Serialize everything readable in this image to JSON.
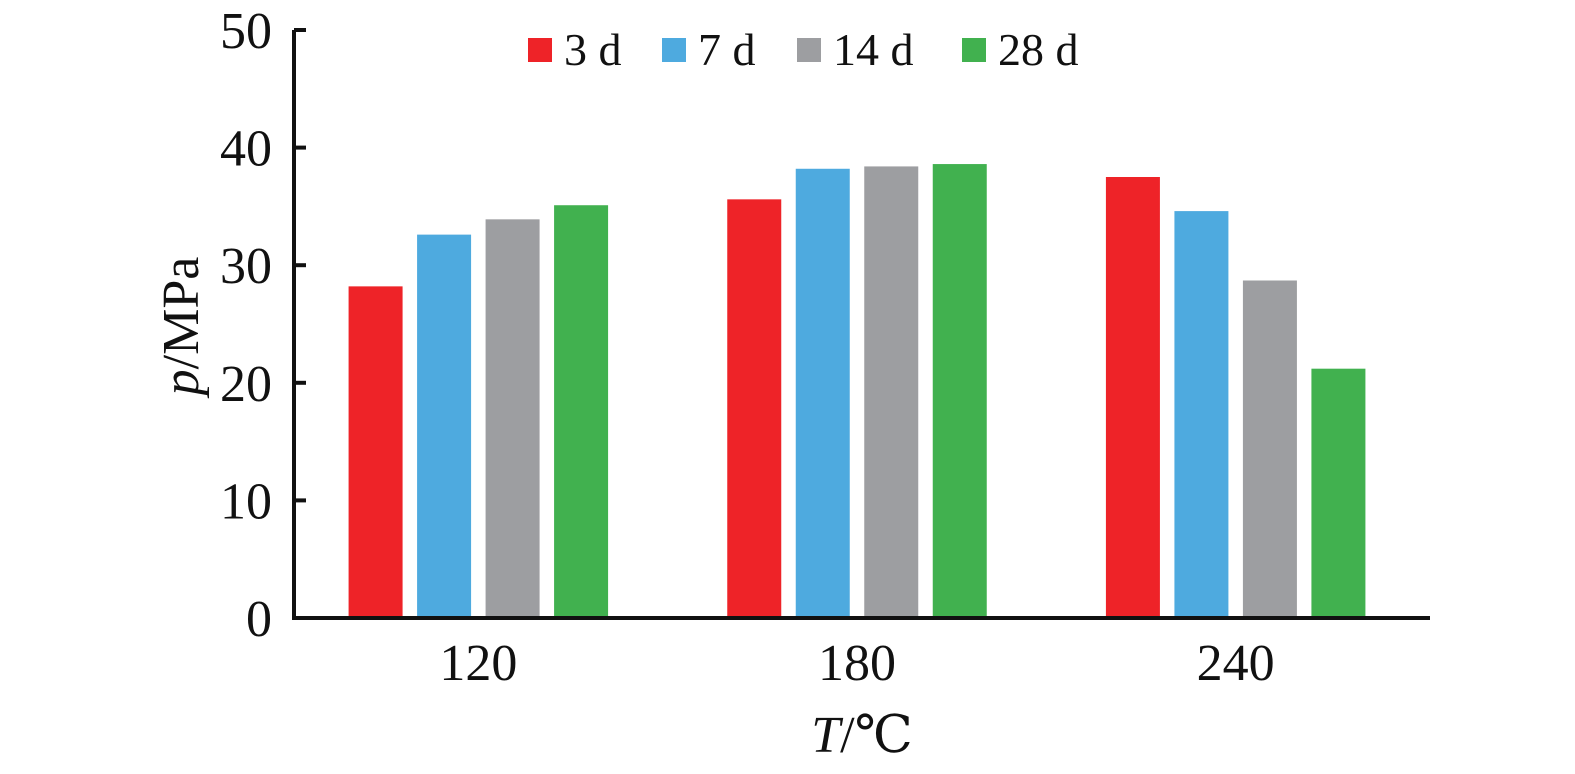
{
  "chart_data": {
    "type": "bar",
    "categories": [
      "120",
      "180",
      "240"
    ],
    "series": [
      {
        "name": "3 d",
        "values": [
          28.2,
          35.6,
          37.5
        ]
      },
      {
        "name": "7 d",
        "values": [
          32.6,
          38.2,
          34.6
        ]
      },
      {
        "name": "14 d",
        "values": [
          33.9,
          38.4,
          28.7
        ]
      },
      {
        "name": "28 d",
        "values": [
          35.1,
          38.6,
          21.2
        ]
      }
    ],
    "colors": [
      "#ee2328",
      "#4eaadf",
      "#9d9ea1",
      "#41b14f"
    ],
    "xlabel": {
      "var": "T",
      "unit": "/℃"
    },
    "ylabel": {
      "var": "p",
      "unit": "/MPa"
    },
    "ylim": [
      0,
      50
    ],
    "yticks": [
      "0",
      "10",
      "20",
      "30",
      "40",
      "50"
    ],
    "legend_position": "top",
    "grid": false
  }
}
